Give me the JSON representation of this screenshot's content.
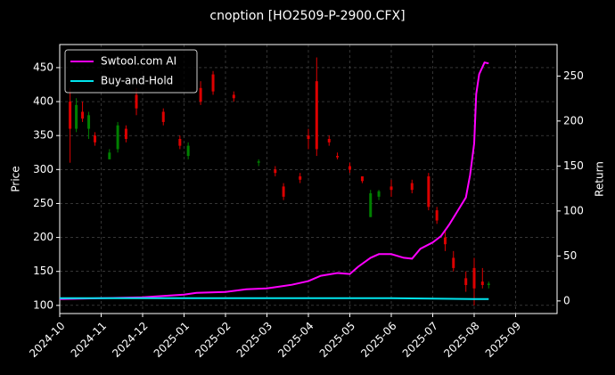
{
  "chart_data": {
    "type": "candlestick",
    "title": "cnoption [HO2509-P-2900.CFX]",
    "ylabel": "Price",
    "y2label": "Return",
    "xlim": [
      0,
      12
    ],
    "xticks": [
      {
        "value": 0,
        "label": "2024-10"
      },
      {
        "value": 1,
        "label": "2024-11"
      },
      {
        "value": 2,
        "label": "2024-12"
      },
      {
        "value": 3,
        "label": "2025-01"
      },
      {
        "value": 4,
        "label": "2025-02"
      },
      {
        "value": 5,
        "label": "2025-03"
      },
      {
        "value": 6,
        "label": "2025-04"
      },
      {
        "value": 7,
        "label": "2025-05"
      },
      {
        "value": 8,
        "label": "2025-06"
      },
      {
        "value": 9,
        "label": "2025-07"
      },
      {
        "value": 10,
        "label": "2025-08"
      },
      {
        "value": 11,
        "label": "2025-09"
      }
    ],
    "ylim": [
      88,
      484
    ],
    "yticks": [
      100,
      150,
      200,
      250,
      300,
      350,
      400,
      450
    ],
    "y2lim": [
      -14,
      285
    ],
    "y2ticks": [
      0,
      50,
      100,
      150,
      200,
      250
    ],
    "grid": true,
    "legend": "upper left",
    "candles": {
      "up_color": "#008000",
      "down_color": "#dd0000",
      "x": [
        0.25,
        0.4,
        0.55,
        0.7,
        0.85,
        1.2,
        1.4,
        1.6,
        1.85,
        2.5,
        2.9,
        3.1,
        3.4,
        3.7,
        4.2,
        4.8,
        5.2,
        5.4,
        5.8,
        6.0,
        6.2,
        6.5,
        6.7,
        7.0,
        7.3,
        7.5,
        7.7,
        8.0,
        8.5,
        8.9,
        9.1,
        9.3,
        9.5,
        9.8,
        10.0,
        10.2,
        10.35
      ],
      "open": [
        400,
        360,
        385,
        360,
        350,
        315,
        330,
        360,
        410,
        385,
        345,
        320,
        420,
        440,
        410,
        310,
        300,
        275,
        290,
        350,
        430,
        345,
        320,
        305,
        290,
        230,
        260,
        275,
        280,
        290,
        240,
        200,
        170,
        140,
        155,
        135,
        130
      ],
      "high": [
        420,
        405,
        400,
        385,
        355,
        330,
        370,
        365,
        420,
        390,
        350,
        340,
        430,
        445,
        415,
        315,
        305,
        280,
        295,
        360,
        465,
        350,
        325,
        310,
        290,
        270,
        270,
        285,
        285,
        295,
        245,
        210,
        180,
        150,
        170,
        155,
        135
      ],
      "low": [
        310,
        355,
        370,
        345,
        335,
        315,
        325,
        340,
        380,
        365,
        330,
        315,
        395,
        410,
        400,
        305,
        290,
        255,
        280,
        330,
        320,
        335,
        315,
        295,
        280,
        230,
        255,
        260,
        265,
        240,
        220,
        180,
        150,
        120,
        100,
        125,
        125
      ],
      "close": [
        360,
        395,
        375,
        380,
        340,
        325,
        365,
        345,
        390,
        370,
        335,
        335,
        400,
        415,
        405,
        312,
        295,
        260,
        285,
        345,
        330,
        340,
        318,
        300,
        283,
        265,
        268,
        270,
        270,
        245,
        225,
        190,
        155,
        130,
        125,
        130,
        132
      ]
    },
    "series": [
      {
        "name": "Swtool.com AI",
        "color": "#ff00ff",
        "axis": "y2",
        "x": [
          0,
          1,
          2,
          3,
          3.3,
          4,
          4.5,
          5,
          5.3,
          5.6,
          6,
          6.3,
          6.7,
          7,
          7.2,
          7.5,
          7.7,
          8,
          8.3,
          8.5,
          8.7,
          9,
          9.2,
          9.4,
          9.6,
          9.8,
          9.9,
          10,
          10.05,
          10.12,
          10.25,
          10.35
        ],
        "values": [
          2,
          3,
          4,
          7,
          9,
          10,
          13,
          14,
          16,
          18,
          22,
          28,
          31,
          30,
          38,
          48,
          52,
          52,
          48,
          47,
          58,
          65,
          72,
          85,
          100,
          115,
          140,
          175,
          230,
          252,
          265,
          264
        ]
      },
      {
        "name": "Buy-and-Hold",
        "color": "#00e5ee",
        "axis": "y2",
        "x": [
          0,
          3,
          6,
          8,
          10,
          10.35
        ],
        "values": [
          3,
          3,
          3,
          3,
          2,
          2
        ]
      }
    ]
  }
}
